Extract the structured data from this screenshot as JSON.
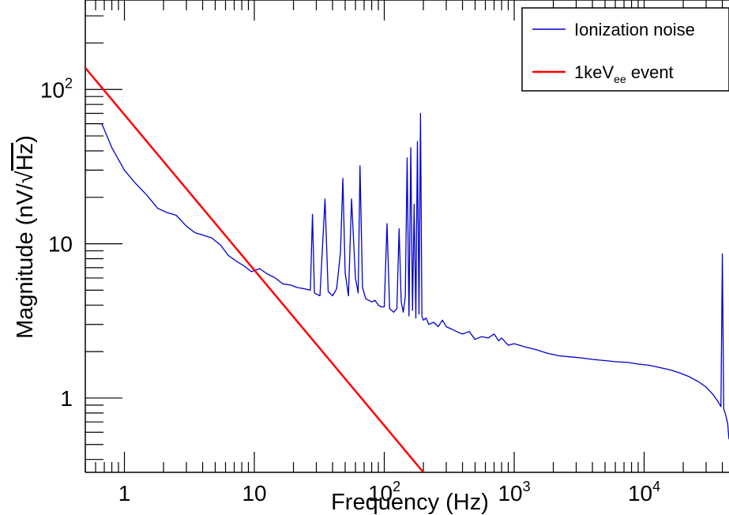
{
  "chart_data": {
    "type": "line",
    "title": "",
    "xlabel": "Frequency (Hz)",
    "ylabel_main": "Magnitude (nV/",
    "ylabel_radical": "Hz",
    "ylabel_close": ")",
    "xscale": "log",
    "yscale": "log",
    "xlim": [
      0.5,
      45000
    ],
    "ylim": [
      0.33,
      380
    ],
    "grid": false,
    "legend_position": "top-right",
    "x_ticks": [
      {
        "value": 1,
        "base": "1",
        "exp": ""
      },
      {
        "value": 10,
        "base": "10",
        "exp": ""
      },
      {
        "value": 100,
        "base": "10",
        "exp": "2"
      },
      {
        "value": 1000,
        "base": "10",
        "exp": "3"
      },
      {
        "value": 10000,
        "base": "10",
        "exp": "4"
      }
    ],
    "y_ticks": [
      {
        "value": 1,
        "base": "1",
        "exp": ""
      },
      {
        "value": 10,
        "base": "10",
        "exp": ""
      },
      {
        "value": 100,
        "base": "10",
        "exp": "2"
      }
    ],
    "series": [
      {
        "name": "Ionization noise",
        "legend_main": "Ionization noise",
        "legend_sub": "",
        "legend_tail": "",
        "color": "#0000cc",
        "stroke_width": 1.3,
        "x": [
          0.67,
          0.8,
          1.0,
          1.2,
          1.5,
          1.8,
          2.1,
          2.5,
          3.0,
          3.5,
          4.0,
          4.7,
          5.5,
          6.3,
          7.3,
          8.3,
          9.5,
          11.0,
          12.5,
          14.5,
          16.5,
          19.0,
          21.5,
          24.5,
          27.0,
          28.0,
          29.0,
          30.5,
          32.0,
          35.0,
          37.0,
          40.0,
          43.0,
          46.0,
          48.0,
          50.0,
          53.0,
          56.0,
          60.0,
          63.0,
          65.0,
          68.0,
          72.0,
          76.0,
          80.0,
          85.0,
          90.0,
          95.0,
          100,
          105,
          110,
          118,
          125,
          130,
          135,
          140,
          145,
          150,
          155,
          160,
          165,
          170,
          175,
          180,
          185,
          190,
          195,
          200,
          210,
          220,
          240,
          260,
          280,
          300,
          330,
          360,
          400,
          450,
          500,
          560,
          630,
          700,
          760,
          800,
          900,
          1000,
          1200,
          1500,
          1800,
          2200,
          2700,
          3300,
          4000,
          5000,
          6000,
          7500,
          9000,
          11000,
          13000,
          16000,
          19000,
          22000,
          26000,
          30000,
          34000,
          37000,
          39000,
          40000,
          41000,
          42000,
          43000,
          44000,
          44500,
          45000
        ],
        "y": [
          60,
          42,
          30,
          25,
          20.5,
          17,
          16,
          15.3,
          13,
          11.8,
          11.4,
          10.9,
          9.8,
          8.4,
          7.7,
          7.2,
          6.6,
          6.9,
          6.4,
          6.0,
          5.5,
          5.4,
          5.2,
          5.1,
          5.0,
          15.5,
          4.8,
          4.7,
          4.6,
          19.5,
          4.9,
          4.6,
          5.1,
          8.8,
          26.5,
          6.5,
          4.6,
          19.5,
          6.0,
          4.8,
          32,
          5.2,
          4.4,
          4.3,
          4.2,
          4.3,
          4.0,
          3.9,
          3.9,
          13.5,
          3.8,
          3.6,
          3.8,
          12.5,
          4.2,
          3.6,
          4.5,
          36,
          3.4,
          42,
          3.7,
          18,
          3.3,
          46,
          3.5,
          70,
          3.4,
          3.2,
          3.3,
          3.0,
          3.1,
          2.9,
          3.2,
          2.9,
          2.8,
          2.7,
          2.6,
          2.7,
          2.4,
          2.5,
          2.45,
          2.6,
          2.35,
          2.45,
          2.2,
          2.25,
          2.15,
          2.05,
          1.95,
          1.88,
          1.85,
          1.82,
          1.78,
          1.75,
          1.72,
          1.7,
          1.66,
          1.63,
          1.58,
          1.52,
          1.45,
          1.38,
          1.28,
          1.18,
          1.05,
          0.95,
          0.88,
          8.6,
          0.85,
          0.8,
          0.74,
          0.68,
          0.6,
          0.54
        ]
      },
      {
        "name": "1keVee event",
        "legend_main": "1keV",
        "legend_sub": "ee",
        "legend_tail": " event",
        "color": "#ff0000",
        "stroke_width": 2.5,
        "x": [
          0.5,
          200
        ],
        "y": [
          138,
          0.33
        ]
      }
    ]
  }
}
